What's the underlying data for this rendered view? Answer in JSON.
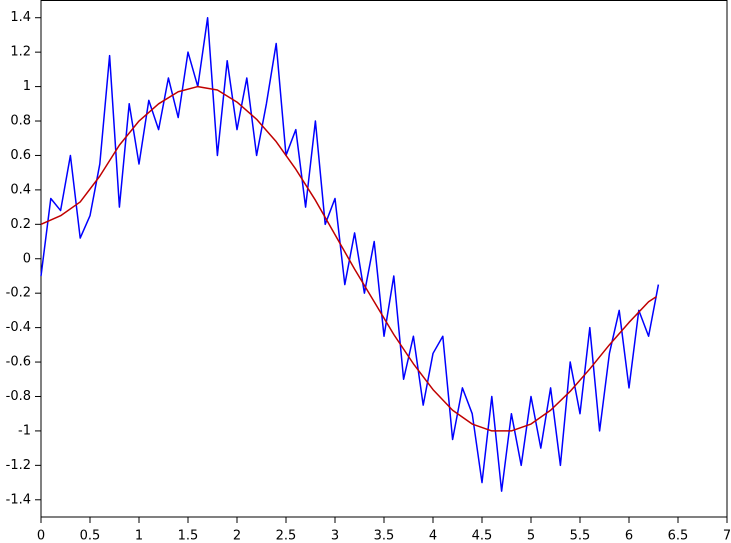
{
  "chart_data": {
    "type": "line",
    "xlim": [
      0,
      7
    ],
    "ylim": [
      -1.5,
      1.5
    ],
    "xticks": [
      0,
      0.5,
      1,
      1.5,
      2,
      2.5,
      3,
      3.5,
      4,
      4.5,
      5,
      5.5,
      6,
      6.5,
      7
    ],
    "yticks": [
      -1.4,
      -1.2,
      -1,
      -0.8,
      -0.6,
      -0.4,
      -0.2,
      0,
      0.2,
      0.4,
      0.6,
      0.8,
      1,
      1.2,
      1.4
    ],
    "series": [
      {
        "color": "#0000ff",
        "x": [
          0,
          0.1,
          0.2,
          0.3,
          0.4,
          0.5,
          0.6,
          0.7,
          0.8,
          0.9,
          1.0,
          1.1,
          1.2,
          1.3,
          1.4,
          1.5,
          1.6,
          1.7,
          1.8,
          1.9,
          2.0,
          2.1,
          2.2,
          2.3,
          2.4,
          2.5,
          2.6,
          2.7,
          2.8,
          2.9,
          3.0,
          3.1,
          3.2,
          3.3,
          3.4,
          3.5,
          3.6,
          3.7,
          3.8,
          3.9,
          4.0,
          4.1,
          4.2,
          4.3,
          4.4,
          4.5,
          4.6,
          4.7,
          4.8,
          4.9,
          5.0,
          5.1,
          5.2,
          5.3,
          5.4,
          5.5,
          5.6,
          5.7,
          5.8,
          5.9,
          6.0,
          6.1,
          6.2,
          6.3
        ],
        "values": [
          -0.1,
          0.35,
          0.28,
          0.6,
          0.12,
          0.25,
          0.55,
          1.18,
          0.3,
          0.9,
          0.55,
          0.92,
          0.75,
          1.05,
          0.82,
          1.2,
          1.0,
          1.4,
          0.6,
          1.15,
          0.75,
          1.05,
          0.6,
          0.9,
          1.25,
          0.6,
          0.75,
          0.3,
          0.8,
          0.2,
          0.35,
          -0.15,
          0.15,
          -0.2,
          0.1,
          -0.45,
          -0.1,
          -0.7,
          -0.45,
          -0.85,
          -0.55,
          -0.45,
          -1.05,
          -0.75,
          -0.9,
          -1.3,
          -0.8,
          -1.35,
          -0.9,
          -1.2,
          -0.8,
          -1.1,
          -0.75,
          -1.2,
          -0.6,
          -0.9,
          -0.4,
          -1.0,
          -0.55,
          -0.3,
          -0.75,
          -0.3,
          -0.45,
          -0.15
        ]
      },
      {
        "color": "#c00000",
        "x": [
          0,
          0.2,
          0.4,
          0.6,
          0.8,
          1.0,
          1.2,
          1.4,
          1.6,
          1.8,
          2.0,
          2.2,
          2.4,
          2.6,
          2.8,
          3.0,
          3.2,
          3.4,
          3.6,
          3.8,
          4.0,
          4.2,
          4.4,
          4.6,
          4.8,
          5.0,
          5.2,
          5.4,
          5.6,
          5.8,
          6.0,
          6.2,
          6.28
        ],
        "values": [
          0.2,
          0.25,
          0.33,
          0.48,
          0.66,
          0.8,
          0.9,
          0.97,
          1.0,
          0.98,
          0.91,
          0.81,
          0.68,
          0.52,
          0.34,
          0.14,
          -0.06,
          -0.25,
          -0.44,
          -0.61,
          -0.76,
          -0.88,
          -0.96,
          -1.0,
          -1.0,
          -0.96,
          -0.88,
          -0.77,
          -0.64,
          -0.5,
          -0.37,
          -0.25,
          -0.22
        ]
      }
    ]
  }
}
